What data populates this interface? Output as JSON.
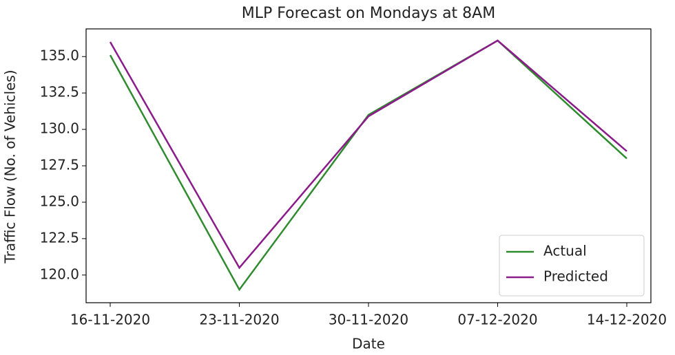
{
  "chart_data": {
    "type": "line",
    "title": "MLP Forecast on Mondays at 8AM",
    "x_label": "Date",
    "y_label": "Traffic Flow (No. of Vehicles)",
    "categories": [
      "16-11-2020",
      "23-11-2020",
      "30-11-2020",
      "07-12-2020",
      "14-12-2020"
    ],
    "series": [
      {
        "name": "Actual",
        "color": "#2e8b2e",
        "values": [
          135.1,
          119.0,
          131.0,
          136.1,
          128.0
        ]
      },
      {
        "name": "Predicted",
        "color": "#8b1a8b",
        "values": [
          136.0,
          120.5,
          130.9,
          136.1,
          128.5
        ]
      }
    ],
    "ylim": [
      118.1,
      136.9
    ],
    "yticks": [
      {
        "value": 120,
        "label": "120.0"
      },
      {
        "value": 122.5,
        "label": "122.5"
      },
      {
        "value": 125,
        "label": "125.0"
      },
      {
        "value": 127.5,
        "label": "127.5"
      },
      {
        "value": 130,
        "label": "130.0"
      },
      {
        "value": 132.5,
        "label": "132.5"
      },
      {
        "value": 135,
        "label": "135.0"
      }
    ],
    "legend": "lower right"
  }
}
